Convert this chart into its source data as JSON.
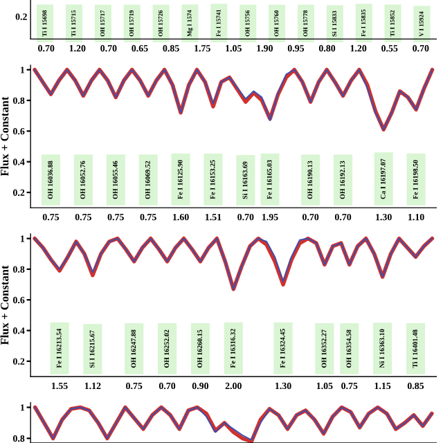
{
  "chart_data": [
    {
      "type": "other",
      "categories": [
        "0.70",
        "1.20",
        "0.70",
        "0.65",
        "0.85",
        "1.75",
        "1.05",
        "1.90",
        "0.95",
        "0.80",
        "1.20",
        "0.55",
        "0.70"
      ],
      "annotations": [
        "0.2",
        "Ti I 15698",
        "Ti I 15715",
        "OH 15717",
        "OH 15719",
        "OH 15726",
        "Mg I 1574",
        "Fe I 15741",
        "OH 15756",
        "OH 15760",
        "OH 15778",
        "Si I 15833",
        "Fe I 15835",
        "Ti I 15852",
        "V I 15924"
      ]
    },
    {
      "type": "line",
      "ylabel": "Flux + Constant",
      "ylim": [
        0.1,
        1.03
      ],
      "yticks": [
        0.2,
        0.4,
        0.6,
        0.8,
        1
      ],
      "categories": [
        null,
        null,
        "0.75",
        null,
        null,
        null,
        "0.75",
        null,
        null,
        null,
        "0.75",
        null,
        null,
        null,
        "0.75",
        null,
        null,
        null,
        "1.60",
        null,
        null,
        null,
        "1.51",
        null,
        null,
        null,
        "0.70",
        null,
        null,
        "1.95",
        null,
        null,
        null,
        null,
        "0.70",
        null,
        null,
        null,
        "0.70",
        null,
        null,
        null,
        null,
        "1.30",
        null,
        null,
        null,
        "1.10",
        null,
        null
      ],
      "annotations": [
        "OH 16036.88",
        "OH 16052.76",
        "OH 16055.46",
        "OH 16069.52",
        "Fe I 16125.90",
        "Fe I 16153.25",
        "Si I 16163.69",
        "Fe I 16165.03",
        "OH 16190.13",
        "OH 16192.13",
        "Ca I 16197.07",
        "Fe I 16198.50"
      ],
      "series": [
        {
          "color": "#d0312d",
          "values": [
            1,
            0.92,
            0.84,
            0.93,
            1,
            0.93,
            0.83,
            0.93,
            1,
            0.93,
            0.82,
            0.93,
            1,
            0.93,
            0.83,
            0.93,
            1,
            0.9,
            0.72,
            0.9,
            1,
            0.92,
            0.76,
            0.92,
            0.95,
            0.87,
            0.79,
            0.85,
            0.8,
            0.68,
            0.84,
            0.95,
            1,
            0.92,
            0.79,
            0.92,
            1,
            0.92,
            0.83,
            0.93,
            1,
            0.9,
            0.73,
            0.61,
            0.72,
            0.86,
            0.82,
            0.74,
            0.88,
            1
          ]
        },
        {
          "color": "#3a4fb0",
          "values": [
            1,
            0.92,
            0.84,
            0.93,
            1,
            0.93,
            0.83,
            0.93,
            1,
            0.93,
            0.82,
            0.93,
            1,
            0.93,
            0.83,
            0.93,
            1,
            0.9,
            0.72,
            0.9,
            1,
            0.92,
            0.78,
            0.92,
            0.95,
            0.88,
            0.81,
            0.86,
            0.82,
            0.67,
            0.85,
            0.97,
            1,
            0.92,
            0.79,
            0.92,
            1,
            0.92,
            0.83,
            0.93,
            1,
            0.88,
            0.72,
            0.61,
            0.72,
            0.86,
            0.82,
            0.74,
            0.88,
            1
          ]
        }
      ]
    },
    {
      "type": "line",
      "ylabel": "Flux + Constant",
      "ylim": [
        0.1,
        1.03
      ],
      "yticks": [
        0.2,
        0.4,
        0.6,
        0.8,
        1
      ],
      "categories": [
        null,
        null,
        null,
        "1.55",
        null,
        null,
        null,
        "1.12",
        null,
        null,
        null,
        null,
        "0.75",
        null,
        null,
        null,
        "0.70",
        null,
        null,
        null,
        "0.90",
        null,
        null,
        null,
        "2.00",
        null,
        null,
        null,
        null,
        null,
        "1.30",
        null,
        null,
        null,
        null,
        "1.05",
        null,
        null,
        "0.75",
        null,
        null,
        null,
        "1.15",
        null,
        null,
        null,
        "0.85",
        null,
        null
      ],
      "annotations": [
        "Fe I 16213.54",
        "Si I 16215.67",
        "OH 16247.88",
        "OH 16252.02",
        "OH 16260.15",
        "Fe I 16316.32",
        "Fe I 16324.45",
        "OH 16352.27",
        "OH 16354.58",
        "Ni I 16363.10",
        "Ti I 16401.48"
      ],
      "series": [
        {
          "color": "#d0312d",
          "values": [
            1,
            0.94,
            0.86,
            0.79,
            0.88,
            0.98,
            0.9,
            0.76,
            0.9,
            0.98,
            1,
            0.93,
            0.85,
            0.94,
            1,
            0.93,
            0.85,
            0.94,
            1,
            0.93,
            0.85,
            0.94,
            1,
            0.85,
            0.67,
            0.82,
            0.95,
            1,
            0.96,
            0.85,
            0.7,
            0.86,
            0.97,
            1,
            0.97,
            0.83,
            0.95,
            0.97,
            0.83,
            0.95,
            1,
            0.9,
            0.75,
            0.9,
            1,
            0.94,
            0.88,
            0.95,
            1
          ]
        },
        {
          "color": "#3a4fb0",
          "values": [
            1,
            0.94,
            0.86,
            0.8,
            0.88,
            0.98,
            0.9,
            0.78,
            0.9,
            0.98,
            1,
            0.93,
            0.85,
            0.94,
            1,
            0.93,
            0.85,
            0.94,
            1,
            0.93,
            0.85,
            0.94,
            1,
            0.85,
            0.67,
            0.82,
            0.95,
            1,
            0.98,
            0.88,
            0.72,
            0.88,
            0.99,
            1,
            0.97,
            0.83,
            0.95,
            0.97,
            0.83,
            0.95,
            1,
            0.9,
            0.75,
            0.9,
            1,
            0.94,
            0.88,
            0.95,
            1
          ]
        }
      ]
    },
    {
      "type": "line",
      "ylim": [
        0.77,
        1.03
      ],
      "yticks": [
        0.8,
        1
      ],
      "categories": [
        null,
        null,
        null,
        null,
        null,
        null,
        null,
        null,
        null,
        null,
        null,
        null,
        null,
        null,
        null,
        null,
        null,
        null,
        null,
        null,
        null,
        null,
        null,
        null,
        null,
        null,
        null,
        null,
        null,
        null,
        null,
        null,
        null,
        null,
        null,
        null,
        null,
        null,
        null,
        null,
        null,
        null,
        null,
        null,
        null
      ],
      "series": [
        {
          "color": "#d0312d",
          "values": [
            1,
            0.9,
            0.8,
            0.92,
            0.99,
            1,
            0.98,
            0.9,
            0.8,
            0.9,
            1,
            0.93,
            0.86,
            0.95,
            1,
            0.95,
            0.86,
            0.98,
            1,
            0.96,
            0.85,
            0.9,
            0.84,
            0.8,
            0.78,
            0.92,
            0.99,
            0.95,
            0.86,
            0.95,
            0.98,
            0.92,
            0.83,
            0.94,
            1,
            0.97,
            0.87,
            0.96,
            1,
            0.96,
            0.86,
            0.9,
            0.95,
            0.88,
            0.96
          ]
        },
        {
          "color": "#3a4fb0",
          "values": [
            1,
            0.9,
            0.8,
            0.92,
            0.99,
            1,
            0.98,
            0.9,
            0.8,
            0.9,
            1,
            0.93,
            0.86,
            0.95,
            1,
            0.95,
            0.86,
            0.98,
            1,
            0.94,
            0.84,
            0.9,
            0.86,
            0.82,
            0.79,
            0.9,
            0.99,
            0.95,
            0.86,
            0.95,
            0.98,
            0.92,
            0.83,
            0.94,
            1,
            0.97,
            0.87,
            0.96,
            1,
            0.96,
            0.86,
            0.9,
            0.95,
            0.88,
            0.96
          ]
        }
      ]
    }
  ]
}
